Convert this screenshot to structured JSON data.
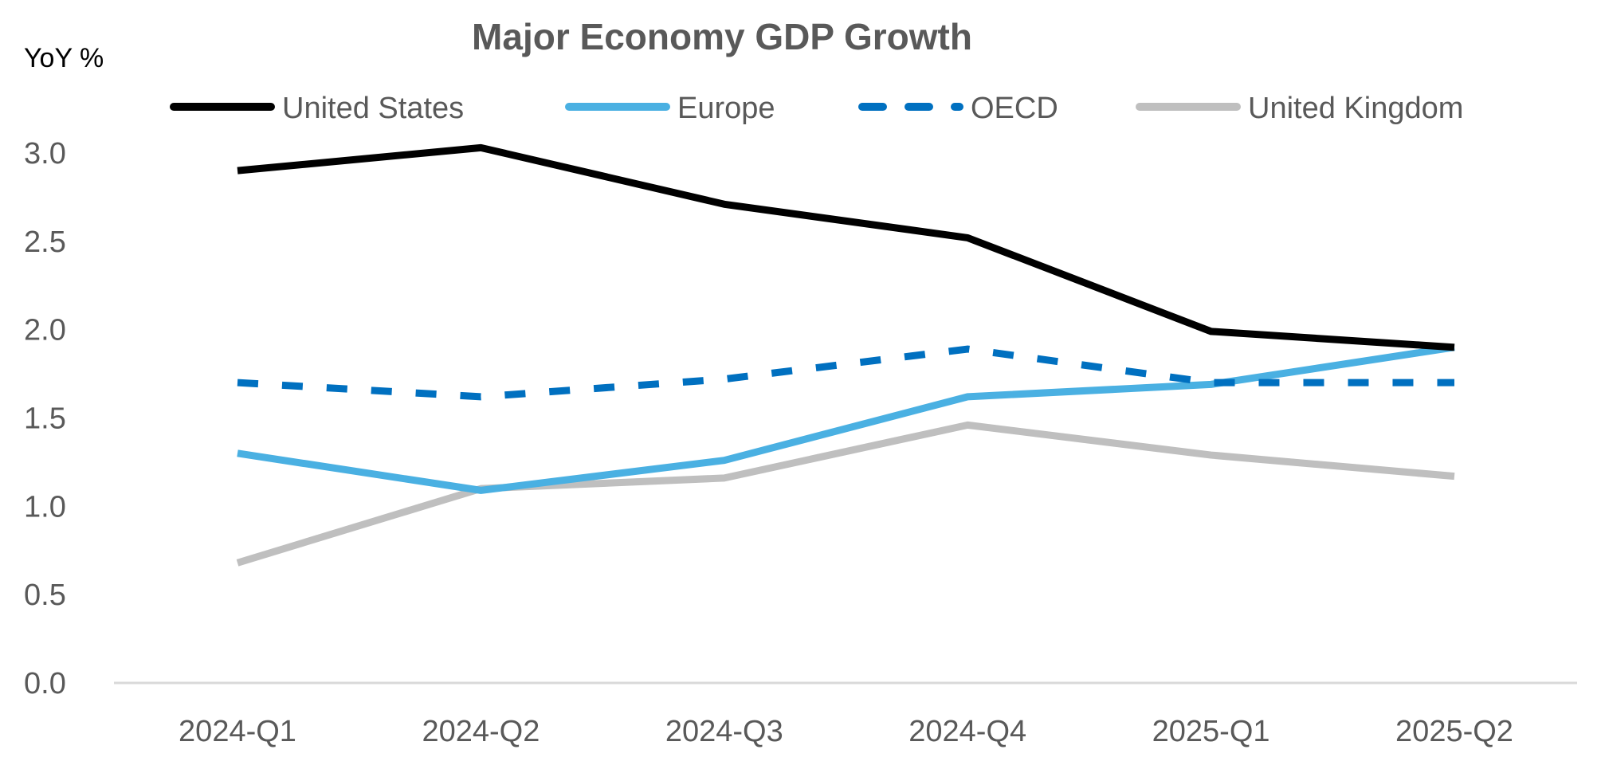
{
  "chart_data": {
    "type": "line",
    "title": "Major Economy GDP Growth",
    "ylabel": "YoY %",
    "xlabel": "",
    "categories": [
      "2024-Q1",
      "2024-Q2",
      "2024-Q3",
      "2024-Q4",
      "2025-Q1",
      "2025-Q2"
    ],
    "ylim": [
      0,
      3.0
    ],
    "yticks": [
      "0.0",
      "0.5",
      "1.0",
      "1.5",
      "2.0",
      "2.5",
      "3.0"
    ],
    "grid": false,
    "legend_position": "top",
    "series": [
      {
        "name": "United States",
        "color": "#000000",
        "dash": false,
        "values": [
          2.9,
          3.03,
          2.71,
          2.52,
          1.99,
          1.9
        ]
      },
      {
        "name": "Europe",
        "color": "#4AB0E2",
        "dash": false,
        "values": [
          1.3,
          1.09,
          1.26,
          1.62,
          1.69,
          1.9
        ]
      },
      {
        "name": "OECD",
        "color": "#0070C0",
        "dash": true,
        "values": [
          1.7,
          1.62,
          1.72,
          1.89,
          1.7,
          1.7
        ]
      },
      {
        "name": "United Kingdom",
        "color": "#BFBFBF",
        "dash": false,
        "values": [
          0.68,
          1.1,
          1.16,
          1.46,
          1.29,
          1.17
        ]
      }
    ]
  }
}
